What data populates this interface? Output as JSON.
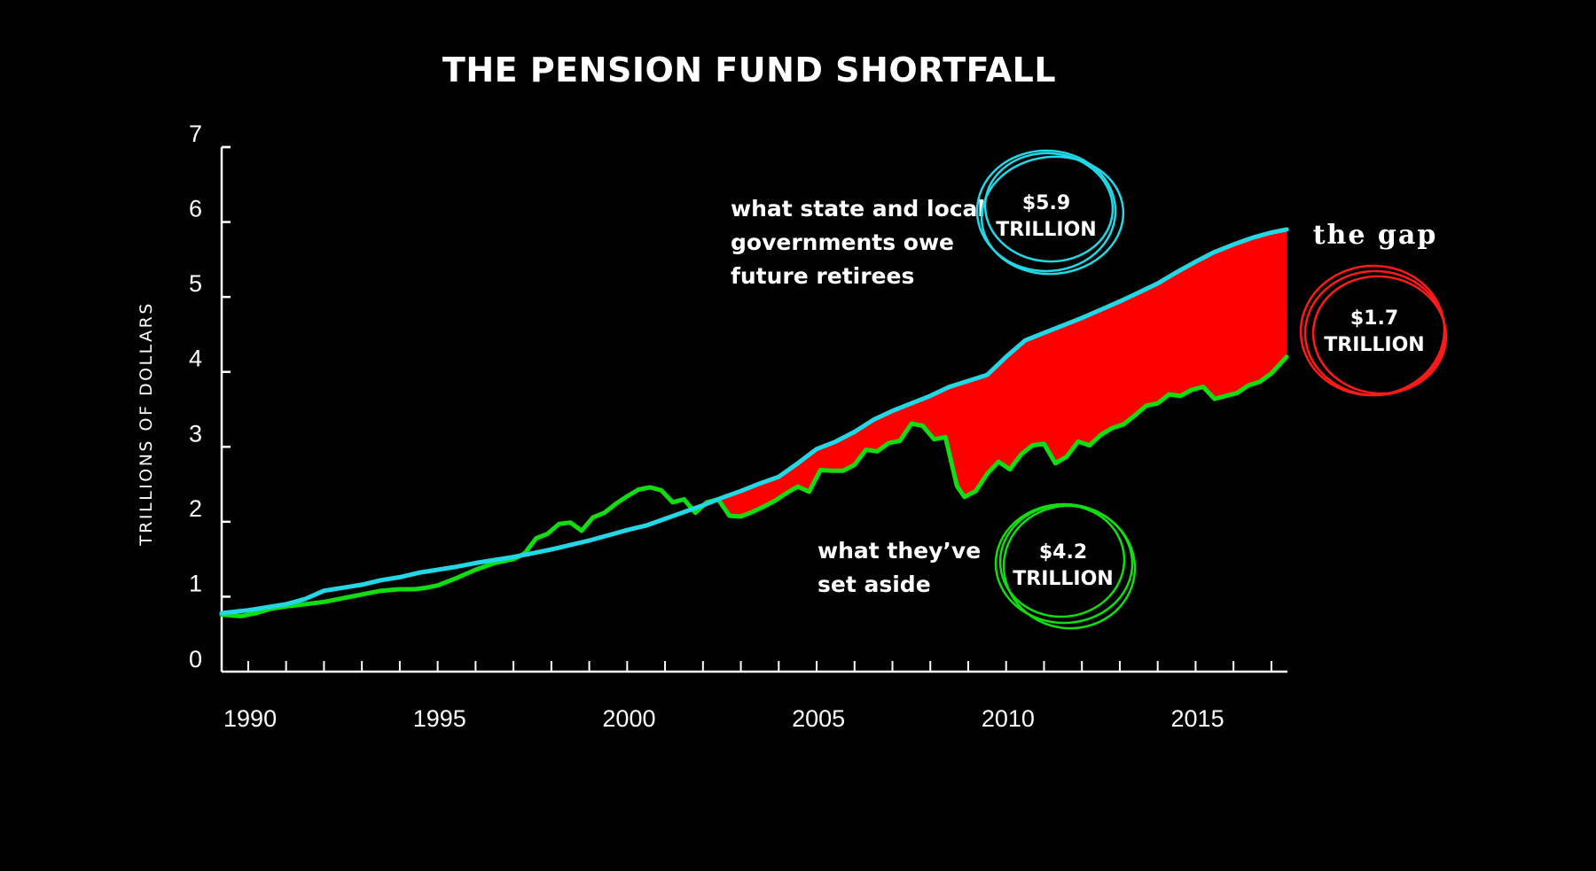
{
  "chart_data": {
    "type": "area",
    "title": "THE PENSION FUND SHORTFALL",
    "ylabel": "TRILLIONS OF DOLLARS",
    "xlabel": "",
    "ylim": [
      0,
      7
    ],
    "xlim": [
      1989.3,
      2017.4
    ],
    "y_ticks": [
      "0",
      "1",
      "2",
      "3",
      "4",
      "5",
      "6",
      "7"
    ],
    "x_ticks": [
      "1990",
      "1995",
      "2000",
      "2005",
      "2010",
      "2015"
    ],
    "grid": false,
    "series": [
      {
        "key": "liabilities",
        "color": "#22d8e6",
        "x": [
          1989.3,
          1990.0,
          1990.5,
          1991.0,
          1991.5,
          1992.0,
          1992.5,
          1993.0,
          1993.5,
          1994.0,
          1994.5,
          1995.0,
          1995.5,
          1996.0,
          1996.5,
          1997.0,
          1997.5,
          1998.0,
          1998.5,
          1999.0,
          1999.5,
          2000.0,
          2000.5,
          2001.0,
          2001.5,
          2002.0,
          2002.5,
          2003.0,
          2003.5,
          2004.0,
          2004.5,
          2005.0,
          2005.5,
          2006.0,
          2006.5,
          2007.0,
          2007.5,
          2008.0,
          2008.5,
          2009.0,
          2009.5,
          2010.0,
          2010.5,
          2011.0,
          2011.5,
          2012.0,
          2012.5,
          2013.0,
          2013.5,
          2014.0,
          2014.5,
          2015.0,
          2015.5,
          2016.0,
          2016.5,
          2017.0,
          2017.4
        ],
        "values": [
          0.78,
          0.82,
          0.86,
          0.9,
          0.97,
          1.08,
          1.12,
          1.16,
          1.22,
          1.26,
          1.32,
          1.36,
          1.4,
          1.45,
          1.49,
          1.53,
          1.58,
          1.63,
          1.69,
          1.75,
          1.82,
          1.89,
          1.95,
          2.04,
          2.13,
          2.22,
          2.32,
          2.41,
          2.51,
          2.6,
          2.78,
          2.97,
          3.07,
          3.2,
          3.36,
          3.48,
          3.58,
          3.68,
          3.8,
          3.88,
          3.96,
          4.2,
          4.42,
          4.52,
          4.62,
          4.72,
          4.83,
          4.94,
          5.06,
          5.18,
          5.33,
          5.47,
          5.6,
          5.7,
          5.79,
          5.86,
          5.9
        ]
      },
      {
        "key": "assets",
        "color": "#11dd11",
        "x": [
          1989.3,
          1989.8,
          1990.2,
          1990.6,
          1991.0,
          1991.5,
          1992.0,
          1992.5,
          1993.0,
          1993.5,
          1994.0,
          1994.4,
          1994.7,
          1995.0,
          1995.5,
          1996.0,
          1996.5,
          1997.0,
          1997.3,
          1997.6,
          1997.9,
          1998.2,
          1998.5,
          1998.8,
          1999.1,
          1999.4,
          1999.7,
          2000.0,
          2000.3,
          2000.6,
          2000.9,
          2001.2,
          2001.5,
          2001.8,
          2002.1,
          2002.4,
          2002.7,
          2003.0,
          2003.3,
          2003.6,
          2003.9,
          2004.2,
          2004.5,
          2004.8,
          2005.1,
          2005.4,
          2005.7,
          2006.0,
          2006.3,
          2006.6,
          2006.9,
          2007.2,
          2007.5,
          2007.8,
          2008.1,
          2008.4,
          2008.7,
          2008.9,
          2009.2,
          2009.5,
          2009.8,
          2010.1,
          2010.4,
          2010.7,
          2011.0,
          2011.3,
          2011.6,
          2011.9,
          2012.2,
          2012.5,
          2012.8,
          2013.1,
          2013.4,
          2013.7,
          2014.0,
          2014.3,
          2014.6,
          2014.9,
          2015.2,
          2015.5,
          2015.8,
          2016.1,
          2016.4,
          2016.7,
          2017.0,
          2017.4
        ],
        "values": [
          0.76,
          0.74,
          0.78,
          0.84,
          0.87,
          0.9,
          0.93,
          0.98,
          1.03,
          1.08,
          1.1,
          1.1,
          1.12,
          1.15,
          1.25,
          1.36,
          1.45,
          1.5,
          1.58,
          1.78,
          1.84,
          1.97,
          1.99,
          1.88,
          2.06,
          2.12,
          2.24,
          2.34,
          2.43,
          2.46,
          2.42,
          2.26,
          2.3,
          2.12,
          2.26,
          2.3,
          2.08,
          2.07,
          2.13,
          2.2,
          2.28,
          2.38,
          2.47,
          2.4,
          2.69,
          2.68,
          2.68,
          2.76,
          2.96,
          2.94,
          3.05,
          3.08,
          3.31,
          3.28,
          3.1,
          3.13,
          2.48,
          2.33,
          2.41,
          2.64,
          2.8,
          2.7,
          2.9,
          3.02,
          3.04,
          2.78,
          2.87,
          3.07,
          3.02,
          3.16,
          3.25,
          3.3,
          3.42,
          3.55,
          3.58,
          3.7,
          3.68,
          3.76,
          3.8,
          3.64,
          3.68,
          3.72,
          3.82,
          3.87,
          3.98,
          4.2
        ]
      }
    ],
    "gap_fill_color": "#ff0000",
    "gap_start_x": 2002.1,
    "annotations": {
      "liabilities_text": [
        "what state and local",
        "governments owe",
        "future retirees"
      ],
      "liabilities_badge": [
        "$5.9",
        "TRILLION"
      ],
      "assets_text": [
        "what they’ve",
        "set aside"
      ],
      "assets_badge": [
        "$4.2",
        "TRILLION"
      ],
      "gap_label": "the gap",
      "gap_badge": [
        "$1.7",
        "TRILLION"
      ]
    }
  }
}
